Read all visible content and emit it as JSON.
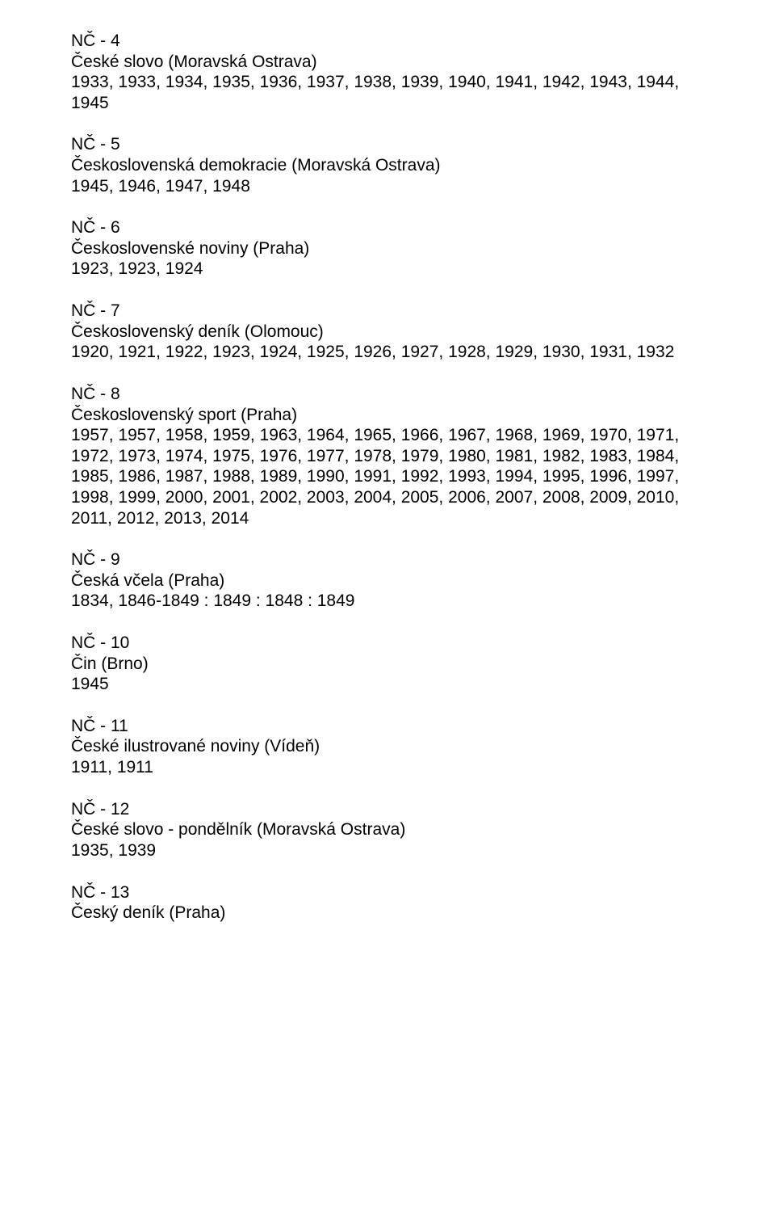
{
  "entries": [
    {
      "code": "NČ - 4",
      "title": "České slovo (Moravská Ostrava)",
      "years": "1933, 1933, 1934, 1935, 1936, 1937, 1938, 1939, 1940, 1941, 1942, 1943, 1944, 1945"
    },
    {
      "code": "NČ - 5",
      "title": "Československá demokracie (Moravská Ostrava)",
      "years": "1945, 1946, 1947, 1948"
    },
    {
      "code": "NČ - 6",
      "title": "Československé noviny (Praha)",
      "years": "1923, 1923, 1924"
    },
    {
      "code": "NČ - 7",
      "title": "Československý deník (Olomouc)",
      "years": "1920, 1921, 1922, 1923, 1924, 1925, 1926, 1927, 1928, 1929, 1930, 1931, 1932"
    },
    {
      "code": "NČ - 8",
      "title": "Československý sport (Praha)",
      "years": "1957, 1957, 1958, 1959, 1963, 1964, 1965, 1966, 1967, 1968, 1969, 1970, 1971, 1972, 1973, 1974, 1975, 1976, 1977, 1978, 1979, 1980, 1981, 1982, 1983, 1984, 1985, 1986, 1987, 1988, 1989, 1990, 1991, 1992, 1993, 1994, 1995, 1996, 1997, 1998, 1999, 2000, 2001, 2002, 2003, 2004, 2005, 2006, 2007, 2008, 2009, 2010, 2011, 2012, 2013, 2014"
    },
    {
      "code": "NČ - 9",
      "title": "Česká včela (Praha)",
      "years": "1834, 1846-1849 : 1849 : 1848 : 1849"
    },
    {
      "code": "NČ - 10",
      "title": "Čin (Brno)",
      "years": "1945"
    },
    {
      "code": "NČ - 11",
      "title": "České ilustrované noviny (Vídeň)",
      "years": "1911, 1911"
    },
    {
      "code": "NČ - 12",
      "title": "České slovo - pondělník (Moravská Ostrava)",
      "years": "1935, 1939"
    },
    {
      "code": "NČ - 13",
      "title": "Český deník (Praha)",
      "years": ""
    }
  ]
}
